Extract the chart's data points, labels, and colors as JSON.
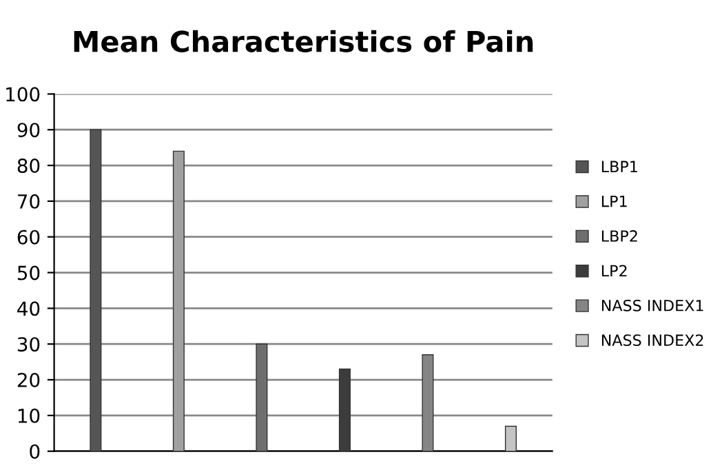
{
  "chart_data": {
    "type": "bar",
    "title": "Mean Characteristics of Pain",
    "categories": [
      null,
      null,
      null,
      null,
      null,
      null
    ],
    "series": [
      {
        "name": "LBP1",
        "color": "#555555",
        "values": [
          90,
          null,
          null,
          null,
          null,
          null
        ]
      },
      {
        "name": "LP1",
        "color": "#a0a0a0",
        "values": [
          null,
          84,
          null,
          null,
          null,
          null
        ]
      },
      {
        "name": "LBP2",
        "color": "#6e6e6e",
        "values": [
          null,
          null,
          30,
          null,
          null,
          null
        ]
      },
      {
        "name": "LP2",
        "color": "#3c3c3c",
        "values": [
          null,
          null,
          null,
          23,
          null,
          null
        ]
      },
      {
        "name": "NASS INDEX1",
        "color": "#858585",
        "values": [
          null,
          null,
          null,
          null,
          27,
          null
        ]
      },
      {
        "name": "NASS INDEX2",
        "color": "#c4c4c4",
        "values": [
          null,
          null,
          null,
          null,
          null,
          7
        ]
      }
    ],
    "ylim": [
      0,
      100
    ],
    "yticks": [
      0,
      10,
      20,
      30,
      40,
      50,
      60,
      70,
      80,
      90,
      100
    ],
    "grid": "y",
    "legend": "right"
  }
}
